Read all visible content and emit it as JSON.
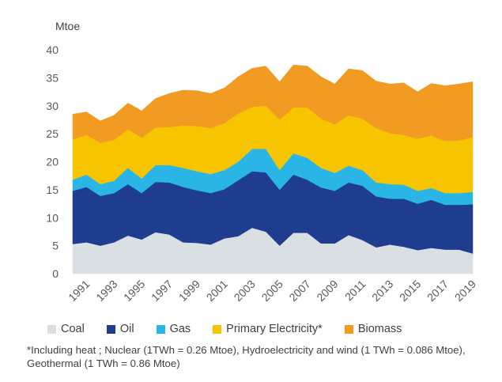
{
  "chart_data": {
    "type": "area",
    "stacked": true,
    "unit_label": "Mtoe",
    "x": [
      1990,
      1991,
      1992,
      1993,
      1994,
      1995,
      1996,
      1997,
      1998,
      1999,
      2000,
      2001,
      2002,
      2003,
      2004,
      2005,
      2006,
      2007,
      2008,
      2009,
      2010,
      2011,
      2012,
      2013,
      2014,
      2015,
      2016,
      2017,
      2018,
      2019
    ],
    "xtick_labels": [
      "1991",
      "1993",
      "1995",
      "1997",
      "1999",
      "2001",
      "2003",
      "2005",
      "2007",
      "2009",
      "2011",
      "2013",
      "2015",
      "2017",
      "2019"
    ],
    "ylim": [
      0,
      40
    ],
    "yticks": [
      0,
      5,
      10,
      15,
      20,
      25,
      30,
      35,
      40
    ],
    "grid": false,
    "series": [
      {
        "name": "Coal",
        "color": "#d9dfe3",
        "values": [
          5.3,
          5.6,
          5.0,
          5.6,
          6.8,
          6.1,
          7.4,
          7.0,
          5.6,
          5.5,
          5.2,
          6.3,
          6.7,
          8.2,
          7.5,
          5.0,
          7.3,
          7.3,
          5.4,
          5.4,
          6.9,
          6.0,
          4.7,
          5.2,
          4.8,
          4.2,
          4.6,
          4.3,
          4.3,
          3.6
        ]
      },
      {
        "name": "Oil",
        "color": "#1f3d8f",
        "values": [
          9.5,
          9.9,
          8.9,
          8.8,
          9.2,
          8.3,
          9.0,
          9.3,
          9.9,
          9.4,
          9.2,
          8.8,
          10.0,
          10.1,
          10.6,
          10.0,
          10.4,
          9.5,
          10.0,
          9.4,
          9.4,
          9.7,
          9.1,
          8.2,
          8.6,
          8.3,
          8.6,
          8.0,
          8.0,
          8.8
        ]
      },
      {
        "name": "Gas",
        "color": "#29b6e6",
        "values": [
          2.0,
          2.2,
          2.1,
          2.2,
          2.9,
          2.6,
          3.0,
          3.1,
          3.4,
          3.4,
          3.4,
          3.4,
          3.3,
          4.0,
          4.2,
          3.5,
          3.8,
          3.9,
          3.5,
          3.2,
          3.0,
          2.8,
          2.5,
          2.6,
          2.5,
          2.3,
          2.1,
          2.1,
          2.1,
          2.2
        ]
      },
      {
        "name": "Primary Electricity*",
        "color": "#f7c400",
        "values": [
          7.2,
          7.1,
          7.4,
          7.3,
          6.9,
          7.3,
          6.7,
          6.8,
          7.6,
          8.1,
          8.2,
          8.4,
          8.6,
          7.5,
          7.7,
          9.0,
          8.2,
          9.0,
          8.8,
          8.7,
          9.0,
          9.2,
          9.7,
          9.1,
          8.9,
          9.3,
          9.4,
          9.3,
          9.4,
          9.8
        ]
      },
      {
        "name": "Biomass",
        "color": "#f29b22",
        "values": [
          4.5,
          4.1,
          3.9,
          4.4,
          4.7,
          4.8,
          5.2,
          6.0,
          6.3,
          6.3,
          6.2,
          6.3,
          6.6,
          6.9,
          7.1,
          6.8,
          7.6,
          7.4,
          7.5,
          7.2,
          8.3,
          8.6,
          8.4,
          8.8,
          9.3,
          8.4,
          9.3,
          9.9,
          10.1,
          9.9
        ]
      }
    ]
  },
  "legend": [
    {
      "label": "Coal",
      "color": "#d9dfe3"
    },
    {
      "label": "Oil",
      "color": "#1f3d8f"
    },
    {
      "label": "Gas",
      "color": "#29b6e6"
    },
    {
      "label": "Primary Electricity*",
      "color": "#f7c400"
    },
    {
      "label": "Biomass",
      "color": "#f29b22"
    }
  ],
  "footnote": "*Including heat ; Nuclear (1TWh = 0.26 Mtoe), Hydroelectricity and wind (1 TWh = 0.086 Mtoe), Geothermal (1 TWh = 0.86 Mtoe)"
}
